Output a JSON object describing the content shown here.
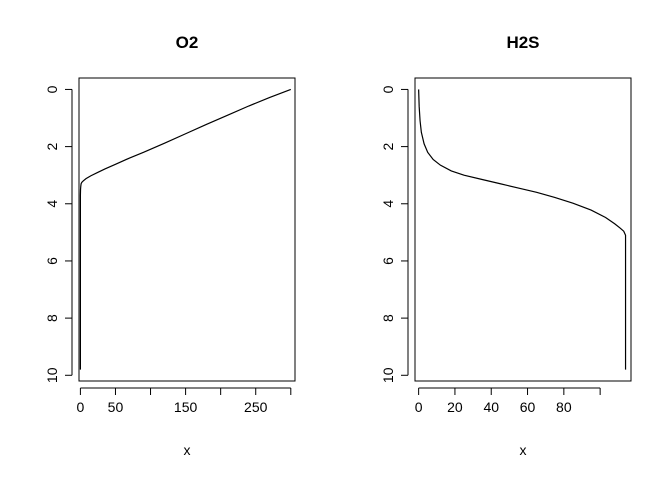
{
  "chart_data": [
    {
      "id": "o2",
      "type": "line",
      "title": "O2",
      "xlabel": "x",
      "ylabel": "",
      "xlim": [
        -2,
        306
      ],
      "ylim": [
        10.2,
        -0.4
      ],
      "y_reversed": true,
      "grid": false,
      "xticks": [
        0,
        50,
        100,
        150,
        200,
        250,
        300
      ],
      "xtick_labels": [
        "0",
        "50",
        "",
        "150",
        "",
        "250",
        ""
      ],
      "yticks": [
        0,
        2,
        4,
        6,
        8,
        10
      ],
      "ytick_labels": [
        "0",
        "2",
        "4",
        "6",
        "8",
        "10"
      ],
      "series": [
        {
          "x": [
            300,
            270,
            240,
            210,
            180,
            150,
            120,
            90,
            70,
            50,
            35,
            25,
            15,
            8,
            4,
            2,
            1,
            0.5,
            0.2,
            0,
            0,
            0,
            0,
            0,
            0
          ],
          "y": [
            0.0,
            0.28,
            0.58,
            0.9,
            1.22,
            1.55,
            1.88,
            2.2,
            2.4,
            2.62,
            2.78,
            2.9,
            3.02,
            3.12,
            3.2,
            3.25,
            3.3,
            3.4,
            3.5,
            3.7,
            4.5,
            6.0,
            7.5,
            9.0,
            9.8
          ]
        }
      ]
    },
    {
      "id": "h2s",
      "type": "line",
      "title": "H2S",
      "xlabel": "x",
      "ylabel": "",
      "xlim": [
        -2,
        117
      ],
      "ylim": [
        10.2,
        -0.4
      ],
      "y_reversed": true,
      "grid": false,
      "xticks": [
        0,
        20,
        40,
        60,
        80,
        100
      ],
      "xtick_labels": [
        "0",
        "20",
        "40",
        "60",
        "80",
        ""
      ],
      "yticks": [
        0,
        2,
        4,
        6,
        8,
        10
      ],
      "ytick_labels": [
        "0",
        "2",
        "4",
        "6",
        "8",
        "10"
      ],
      "series": [
        {
          "x": [
            0,
            0.3,
            0.8,
            1.5,
            3,
            5,
            8,
            12,
            18,
            25,
            35,
            45,
            55,
            65,
            75,
            85,
            95,
            103,
            108,
            111,
            113,
            114,
            114,
            114,
            114
          ],
          "y": [
            0.0,
            0.6,
            1.1,
            1.5,
            1.9,
            2.2,
            2.45,
            2.65,
            2.85,
            3.0,
            3.15,
            3.3,
            3.45,
            3.6,
            3.78,
            3.98,
            4.22,
            4.48,
            4.7,
            4.85,
            4.96,
            5.1,
            6.5,
            8.5,
            9.8
          ]
        }
      ]
    }
  ]
}
